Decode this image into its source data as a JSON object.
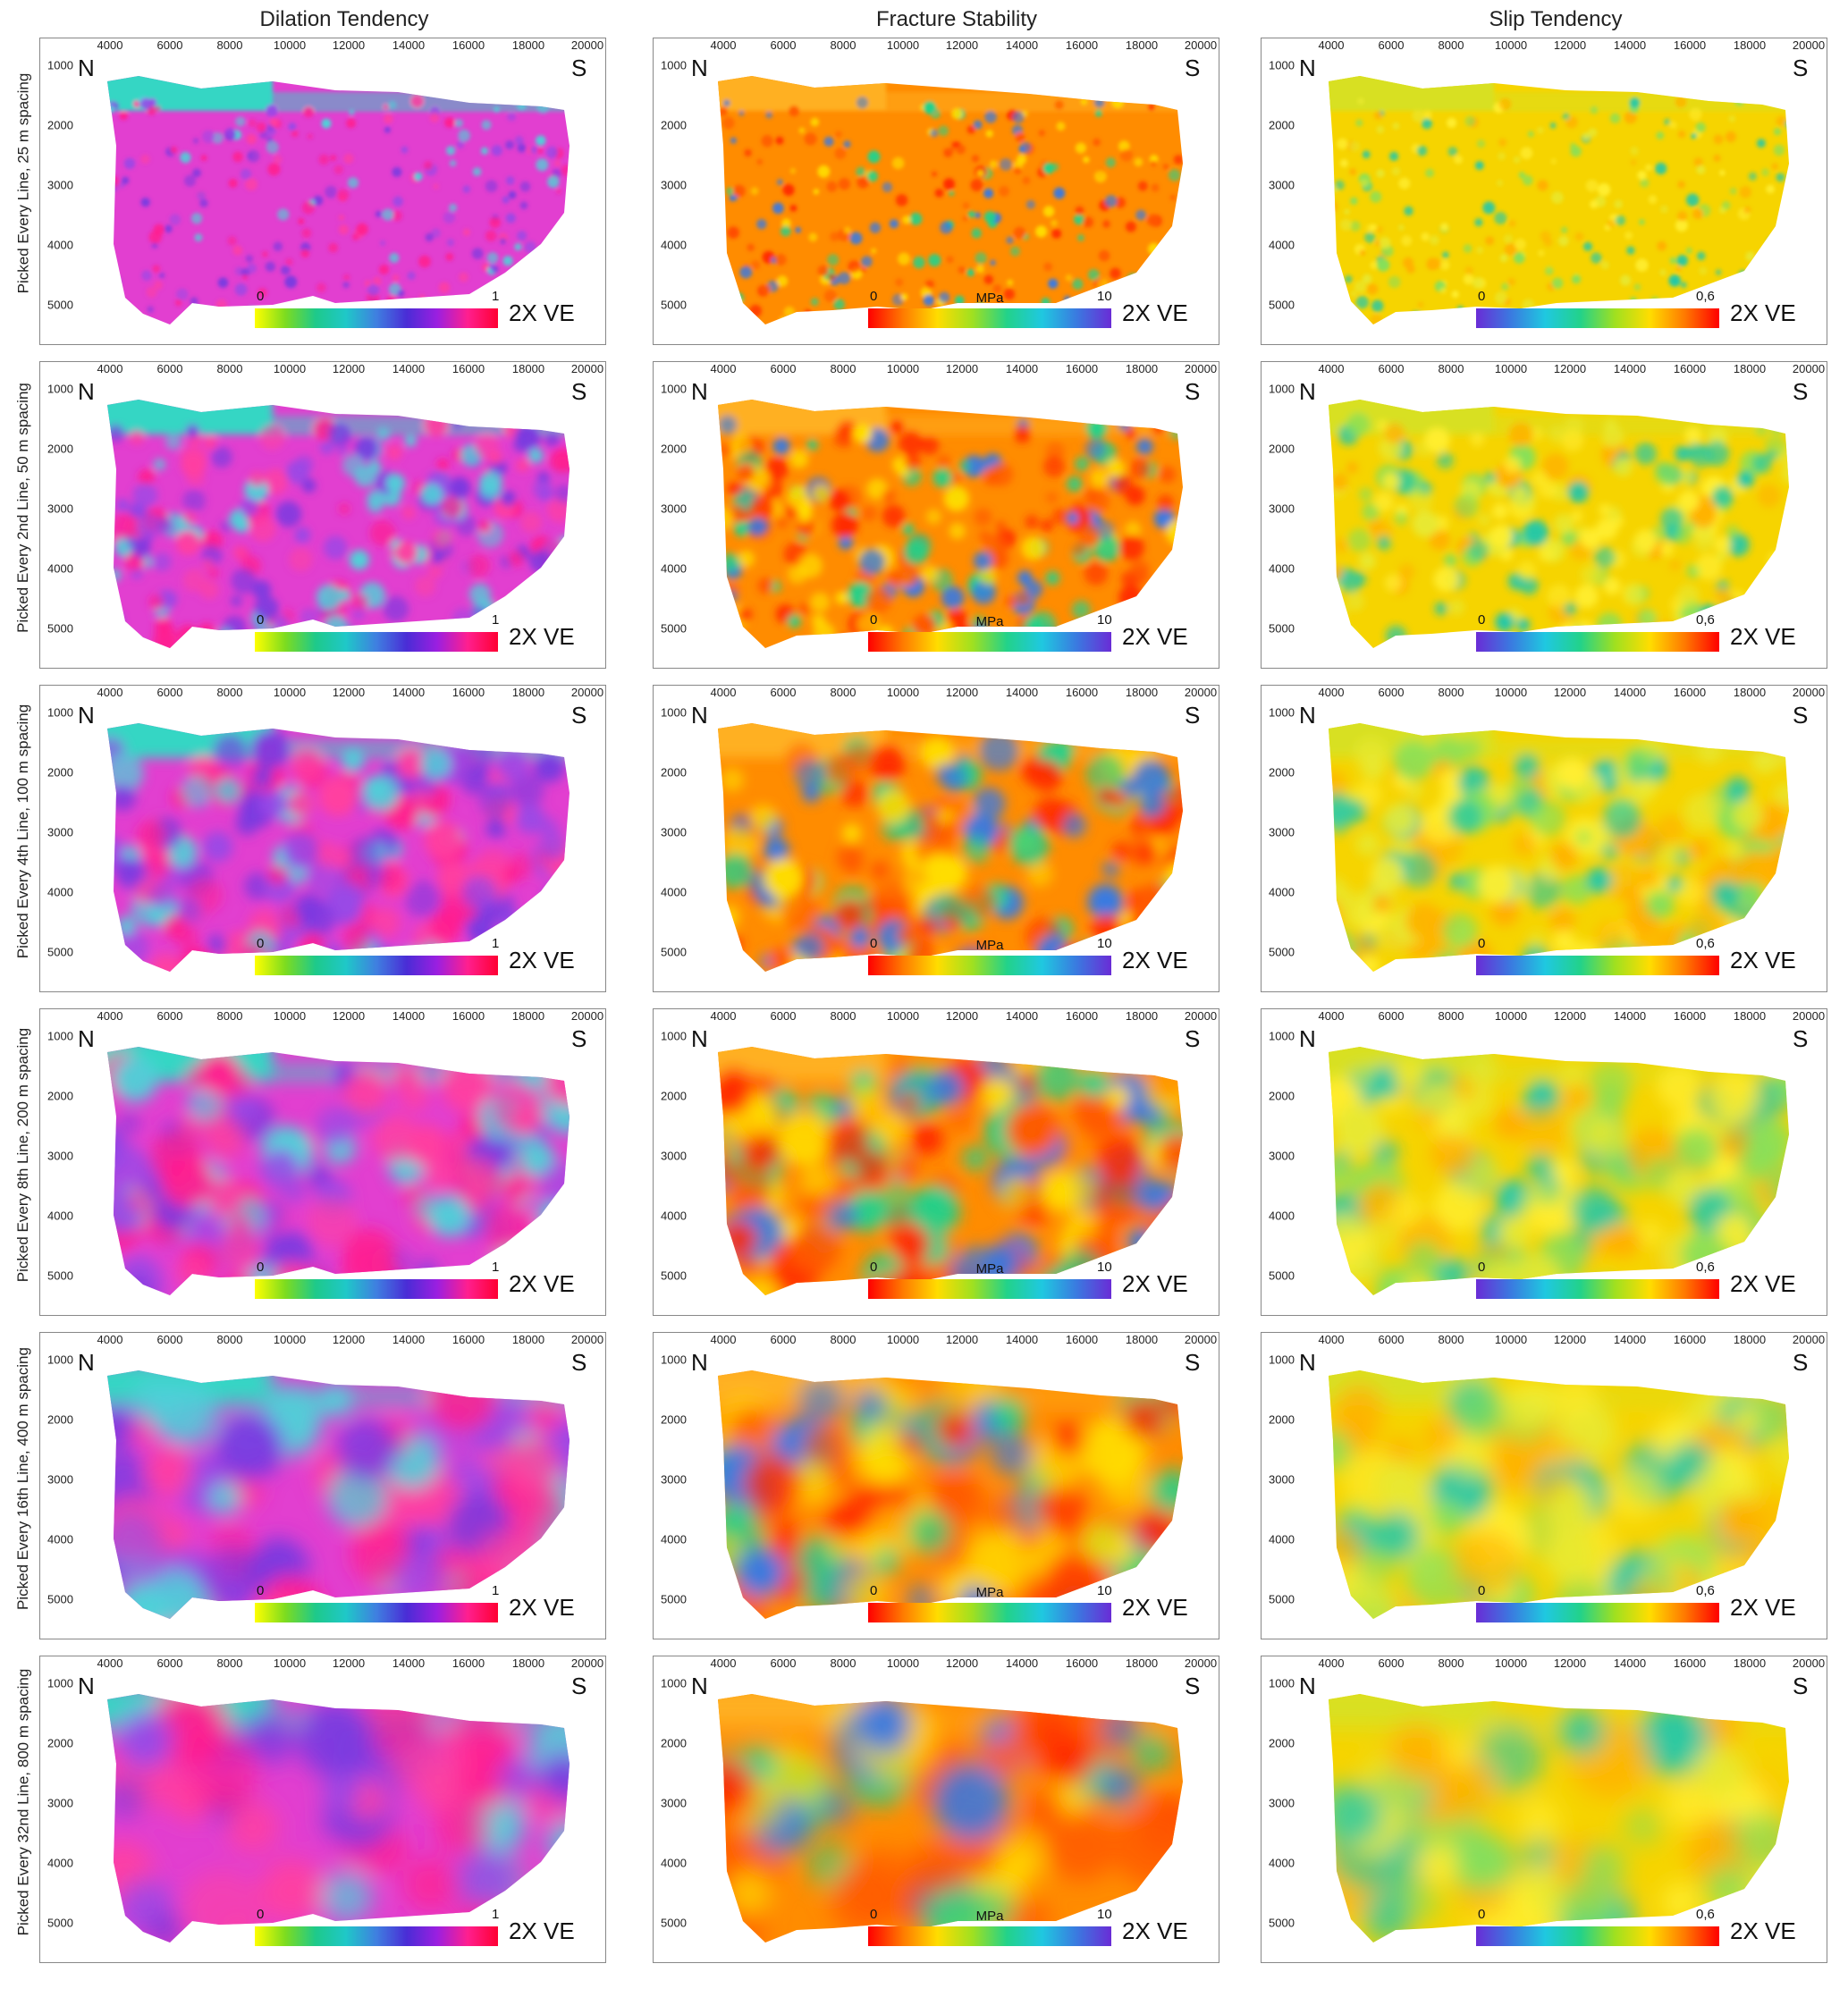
{
  "columns": [
    {
      "title": "Dilation Tendency",
      "scale_min": "0",
      "scale_max": "1",
      "unit": "",
      "gradient": [
        "#ffff00",
        "#7ddc1f",
        "#1ec98a",
        "#1fc8c8",
        "#3f7fe0",
        "#4a2cd6",
        "#9b1fe0",
        "#ff1f8f",
        "#ff0033"
      ]
    },
    {
      "title": "Fracture Stability",
      "scale_min": "0",
      "scale_max": "10",
      "unit": "MPa",
      "gradient": [
        "#ff0000",
        "#ff7a00",
        "#ffdd00",
        "#a0e020",
        "#22d28a",
        "#1fc8e0",
        "#3a7ae0",
        "#6a2cd6"
      ]
    },
    {
      "title": "Slip Tendency",
      "scale_min": "0",
      "scale_max": "0,6",
      "unit": "",
      "gradient": [
        "#6a2cd6",
        "#3a7ae0",
        "#1fc8e0",
        "#22d28a",
        "#a0e020",
        "#ffdd00",
        "#ff7a00",
        "#ff0000"
      ]
    }
  ],
  "rows": [
    {
      "label": "Picked Every Line, 25 m spacing"
    },
    {
      "label": "Picked Every 2nd Line, 50 m spacing"
    },
    {
      "label": "Picked Every 4th Line, 100 m spacing"
    },
    {
      "label": "Picked Every 8th Line, 200 m spacing"
    },
    {
      "label": "Picked Every 16th Line, 400 m spacing"
    },
    {
      "label": "Picked Every  32nd Line, 800 m spacing"
    }
  ],
  "x_ticks": [
    "4000",
    "6000",
    "8000",
    "10000",
    "12000",
    "14000",
    "16000",
    "18000",
    "20000"
  ],
  "y_ticks": [
    "1000",
    "2000",
    "3000",
    "4000",
    "5000"
  ],
  "north_label": "N",
  "south_label": "S",
  "ve_label": "2X VE",
  "map_palettes": {
    "dilation": {
      "base": "#e23fd0",
      "top": "#34d6c4",
      "blobs": [
        "#ff1f8f",
        "#7a3ae0",
        "#4fd0d8",
        "#ff3fa0",
        "#9a48e6"
      ]
    },
    "fracture": {
      "base": "#ff8c00",
      "top": "#ffb020",
      "blobs": [
        "#ff2a00",
        "#ffdd00",
        "#22d28a",
        "#3a7ae0",
        "#ff5a00"
      ]
    },
    "slip": {
      "base": "#f6d400",
      "top": "#d8e020",
      "blobs": [
        "#ffee30",
        "#86e05a",
        "#22c8a8",
        "#ffb000",
        "#e8e830"
      ]
    }
  }
}
